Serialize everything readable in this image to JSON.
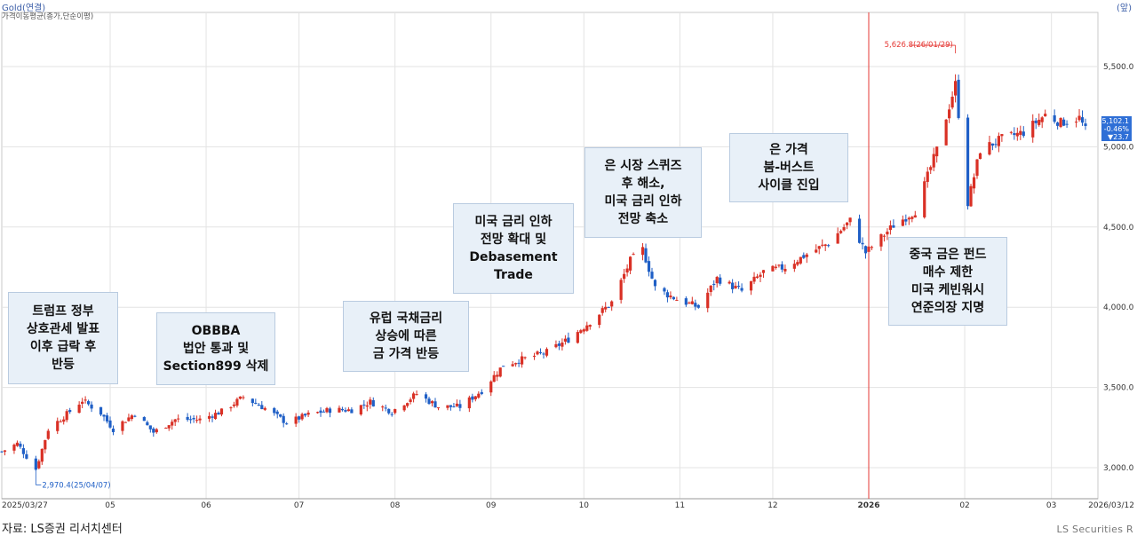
{
  "header": {
    "title": "Gold(연결)",
    "subtitle": "가격이동평균(종가,단순이평)",
    "unit": "(앞)"
  },
  "annotations": [
    {
      "lines": [
        "트럼프 정부",
        "상호관세 발표",
        "이후 급락 후",
        "반등"
      ]
    },
    {
      "lines": [
        "OBBBA",
        "법안 통과 및",
        "Section899 삭제"
      ]
    },
    {
      "lines": [
        "유럽 국채금리",
        "상승에 따른",
        "금 가격 반등"
      ]
    },
    {
      "lines": [
        "미국 금리 인하",
        "전망 확대 및",
        "Debasement",
        "Trade"
      ]
    },
    {
      "lines": [
        "은 시장 스퀴즈",
        "후 해소,",
        "미국 금리 인하",
        "전망 축소"
      ]
    },
    {
      "lines": [
        "은 가격",
        "붐-버스트",
        "사이클 진입"
      ]
    },
    {
      "lines": [
        "중국 금은 펀드",
        "매수 제한",
        "미국 케빈워시",
        "연준의장 지명"
      ]
    }
  ],
  "price_box": {
    "last": "5,102.1",
    "change_pct": "-0.46%",
    "change": "▼23.7"
  },
  "footer": {
    "source": "자료: LS증권 리서치센터",
    "brand": "LS Securities R"
  },
  "colors": {
    "up": "#d93025",
    "down": "#1f5fc6",
    "grid": "#e3e3e3",
    "axis": "#333333",
    "marker": "#e53935"
  },
  "chart_data": {
    "type": "candlestick",
    "title": "Gold(연결)",
    "y_axis": {
      "position": "right",
      "range": [
        2900,
        5700
      ],
      "ticks": [
        "3,000.0",
        "3,500.0",
        "4,000.0",
        "4,500.0",
        "5,000.0",
        "5,500.0"
      ],
      "tick_values": [
        3000,
        3500,
        4000,
        4500,
        5000,
        5500
      ]
    },
    "x_axis": {
      "labels": [
        "2025/03/27",
        "05",
        "06",
        "07",
        "08",
        "09",
        "10",
        "11",
        "12",
        "2026",
        "02",
        "03",
        "2026/03/12"
      ],
      "label_dates": [
        "2025-03-27",
        "2025-05-01",
        "2025-06-01",
        "2025-07-01",
        "2025-08-01",
        "2025-09-01",
        "2025-10-01",
        "2025-11-01",
        "2025-12-01",
        "2026-01-01",
        "2026-02-01",
        "2026-03-01",
        "2026-03-12"
      ],
      "range": [
        "2025-03-27",
        "2026-03-12"
      ]
    },
    "vertical_marker": {
      "date": "2026-01-01"
    },
    "high_label": {
      "text": "5,626.8(26/01/29)",
      "date": "2026-01-29",
      "value": 5626.8
    },
    "low_label": {
      "text": "2,970.4(25/04/07)",
      "date": "2025-04-07",
      "value": 2970.4
    },
    "approx_close_path": [
      [
        "2025-03-27",
        3100
      ],
      [
        "2025-04-01",
        3150
      ],
      [
        "2025-04-07",
        2990
      ],
      [
        "2025-04-11",
        3240
      ],
      [
        "2025-04-18",
        3350
      ],
      [
        "2025-04-22",
        3420
      ],
      [
        "2025-04-28",
        3340
      ],
      [
        "2025-05-02",
        3240
      ],
      [
        "2025-05-09",
        3340
      ],
      [
        "2025-05-15",
        3220
      ],
      [
        "2025-05-22",
        3300
      ],
      [
        "2025-05-30",
        3300
      ],
      [
        "2025-06-06",
        3350
      ],
      [
        "2025-06-13",
        3440
      ],
      [
        "2025-06-20",
        3370
      ],
      [
        "2025-06-27",
        3280
      ],
      [
        "2025-07-04",
        3330
      ],
      [
        "2025-07-11",
        3360
      ],
      [
        "2025-07-18",
        3360
      ],
      [
        "2025-07-24",
        3410
      ],
      [
        "2025-07-31",
        3350
      ],
      [
        "2025-08-08",
        3460
      ],
      [
        "2025-08-15",
        3380
      ],
      [
        "2025-08-22",
        3380
      ],
      [
        "2025-08-29",
        3480
      ],
      [
        "2025-09-05",
        3640
      ],
      [
        "2025-09-12",
        3680
      ],
      [
        "2025-09-19",
        3720
      ],
      [
        "2025-09-26",
        3800
      ],
      [
        "2025-10-03",
        3910
      ],
      [
        "2025-10-10",
        4030
      ],
      [
        "2025-10-16",
        4290
      ],
      [
        "2025-10-20",
        4360
      ],
      [
        "2025-10-24",
        4120
      ],
      [
        "2025-10-31",
        4050
      ],
      [
        "2025-11-07",
        4000
      ],
      [
        "2025-11-13",
        4180
      ],
      [
        "2025-11-21",
        4100
      ],
      [
        "2025-11-28",
        4220
      ],
      [
        "2025-12-05",
        4250
      ],
      [
        "2025-12-12",
        4330
      ],
      [
        "2025-12-19",
        4400
      ],
      [
        "2025-12-26",
        4540
      ],
      [
        "2025-12-31",
        4340
      ],
      [
        "2026-01-09",
        4510
      ],
      [
        "2026-01-16",
        4600
      ],
      [
        "2026-01-23",
        4980
      ],
      [
        "2026-01-29",
        5390
      ],
      [
        "2026-02-02",
        4650
      ],
      [
        "2026-02-06",
        4980
      ],
      [
        "2026-02-13",
        5050
      ],
      [
        "2026-02-20",
        5090
      ],
      [
        "2026-02-27",
        5200
      ],
      [
        "2026-03-04",
        5150
      ],
      [
        "2026-03-10",
        5180
      ],
      [
        "2026-03-12",
        5102.1
      ]
    ]
  }
}
